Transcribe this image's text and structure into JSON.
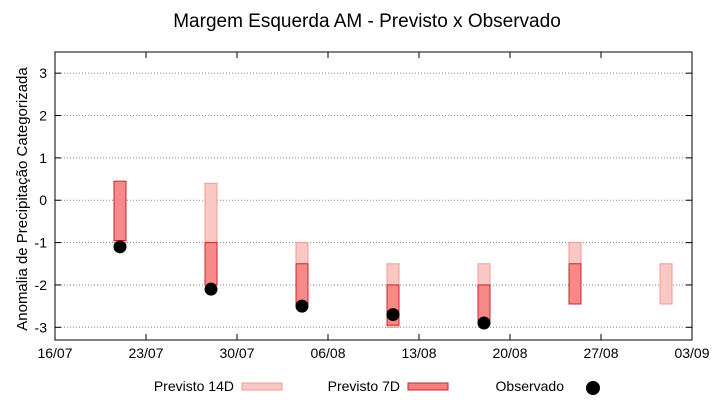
{
  "chart_data": {
    "type": "box",
    "title": "Margem Esquerda AM - Previsto x Observado",
    "xlabel": "",
    "ylabel": "Anomalia de Precipitação Categorizada",
    "ylim": [
      -3.3,
      3.5
    ],
    "xlim": [
      "2020-07-16",
      "2020-09-03"
    ],
    "yticks": [
      3,
      2,
      1,
      0,
      -1,
      -2,
      -3
    ],
    "xtick_labels": [
      "16/07",
      "23/07",
      "30/07",
      "06/08",
      "13/08",
      "20/08",
      "27/08",
      "03/09"
    ],
    "grid": "horizontal dotted",
    "legend_position": "bottom",
    "colors": {
      "previsto_14d_fill": "#f9c8c4",
      "previsto_14d_edge": "#f29a92",
      "previsto_7d_fill": "#f77e7e",
      "previsto_7d_edge": "#c8242a",
      "observado": "#000000",
      "grid": "#888888"
    },
    "series": [
      {
        "name": "Previsto 14D",
        "ranges": [
          {
            "x": "2020-07-21",
            "low": -1.0,
            "high": 0.4
          },
          {
            "x": "2020-07-28",
            "low": -2.0,
            "high": 0.4
          },
          {
            "x": "2020-08-04",
            "low": -2.5,
            "high": -1.0
          },
          {
            "x": "2020-08-11",
            "low": -3.0,
            "high": -1.5
          },
          {
            "x": "2020-08-18",
            "low": -2.9,
            "high": -1.5
          },
          {
            "x": "2020-08-25",
            "low": -2.45,
            "high": -1.0
          },
          {
            "x": "2020-09-01",
            "low": -2.45,
            "high": -1.5
          }
        ]
      },
      {
        "name": "Previsto 7D",
        "ranges": [
          {
            "x": "2020-07-21",
            "low": -0.95,
            "high": 0.45
          },
          {
            "x": "2020-07-28",
            "low": -2.0,
            "high": -1.0
          },
          {
            "x": "2020-08-04",
            "low": -2.45,
            "high": -1.5
          },
          {
            "x": "2020-08-11",
            "low": -2.95,
            "high": -2.0
          },
          {
            "x": "2020-08-18",
            "low": -2.85,
            "high": -2.0
          },
          {
            "x": "2020-08-25",
            "low": -2.45,
            "high": -1.5
          }
        ]
      },
      {
        "name": "Observado",
        "points": [
          {
            "x": "2020-07-21",
            "y": -1.1
          },
          {
            "x": "2020-07-28",
            "y": -2.1
          },
          {
            "x": "2020-08-04",
            "y": -2.5
          },
          {
            "x": "2020-08-11",
            "y": -2.7
          },
          {
            "x": "2020-08-18",
            "y": -2.9
          }
        ]
      }
    ]
  }
}
